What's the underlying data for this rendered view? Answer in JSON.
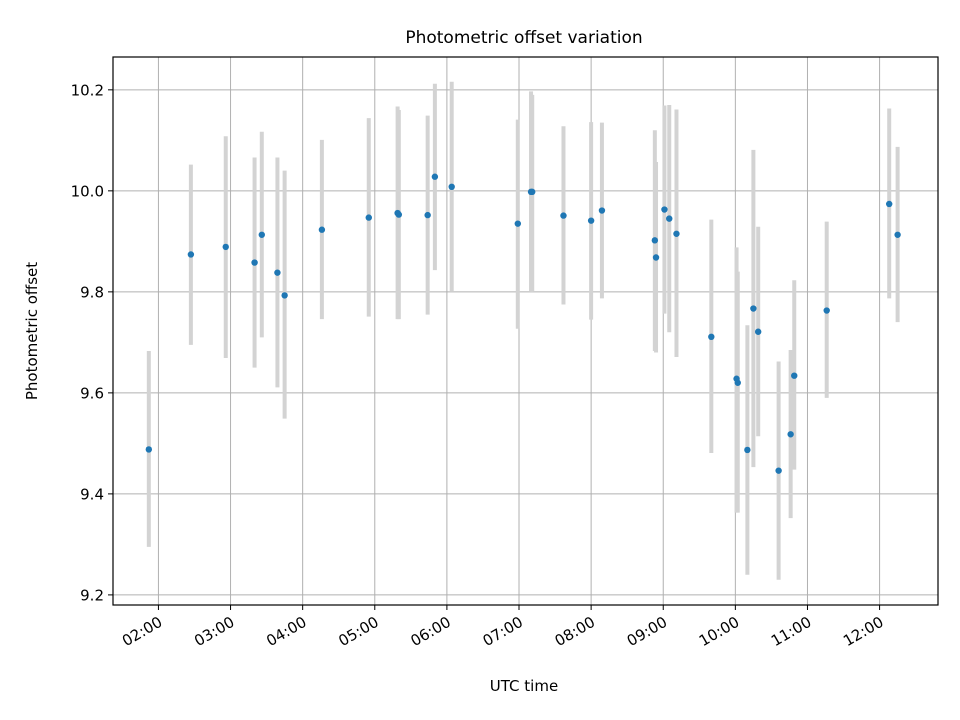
{
  "chart_data": {
    "type": "scatter",
    "title": "Photometric offset variation",
    "xlabel": "UTC time",
    "ylabel": "Photometric offset",
    "grid": true,
    "x_ticks": [
      "02:00",
      "03:00",
      "04:00",
      "05:00",
      "06:00",
      "07:00",
      "08:00",
      "09:00",
      "10:00",
      "11:00",
      "12:00"
    ],
    "x_tick_hours": [
      2,
      3,
      4,
      5,
      6,
      7,
      8,
      9,
      10,
      11,
      12
    ],
    "y_ticks": [
      "9.2",
      "9.4",
      "9.6",
      "9.8",
      "10.0",
      "10.2"
    ],
    "y_tick_values": [
      9.2,
      9.4,
      9.6,
      9.8,
      10.0,
      10.2
    ],
    "xlim_hours": [
      1.37,
      12.81
    ],
    "ylim": [
      9.18,
      10.265
    ],
    "point_color": "#1f77b4",
    "errorbar_color": "#d3d3d3",
    "points": [
      {
        "t": "01:52",
        "y": 9.488,
        "lo": 9.295,
        "hi": 9.683
      },
      {
        "t": "02:27",
        "y": 9.874,
        "lo": 9.695,
        "hi": 10.052
      },
      {
        "t": "02:56",
        "y": 9.889,
        "lo": 9.669,
        "hi": 10.108
      },
      {
        "t": "03:20",
        "y": 9.858,
        "lo": 9.65,
        "hi": 10.066
      },
      {
        "t": "03:26",
        "y": 9.913,
        "lo": 9.71,
        "hi": 10.117
      },
      {
        "t": "03:39",
        "y": 9.838,
        "lo": 9.611,
        "hi": 10.066
      },
      {
        "t": "03:45",
        "y": 9.793,
        "lo": 9.549,
        "hi": 10.04
      },
      {
        "t": "04:16",
        "y": 9.923,
        "lo": 9.746,
        "hi": 10.101
      },
      {
        "t": "04:55",
        "y": 9.947,
        "lo": 9.751,
        "hi": 10.144
      },
      {
        "t": "05:19",
        "y": 9.956,
        "lo": 9.746,
        "hi": 10.167
      },
      {
        "t": "05:20",
        "y": 9.953,
        "lo": 9.746,
        "hi": 10.16
      },
      {
        "t": "05:44",
        "y": 9.952,
        "lo": 9.755,
        "hi": 10.149
      },
      {
        "t": "05:50",
        "y": 10.028,
        "lo": 9.843,
        "hi": 10.212
      },
      {
        "t": "06:04",
        "y": 10.008,
        "lo": 9.8,
        "hi": 10.216
      },
      {
        "t": "06:59",
        "y": 9.935,
        "lo": 9.727,
        "hi": 10.141
      },
      {
        "t": "07:10",
        "y": 9.998,
        "lo": 9.8,
        "hi": 10.197
      },
      {
        "t": "07:11",
        "y": 9.998,
        "lo": 9.8,
        "hi": 10.19
      },
      {
        "t": "07:37",
        "y": 9.951,
        "lo": 9.775,
        "hi": 10.128
      },
      {
        "t": "08:00",
        "y": 9.941,
        "lo": 9.745,
        "hi": 10.136
      },
      {
        "t": "08:09",
        "y": 9.961,
        "lo": 9.787,
        "hi": 10.135
      },
      {
        "t": "08:53",
        "y": 9.902,
        "lo": 9.683,
        "hi": 10.12
      },
      {
        "t": "08:54",
        "y": 9.868,
        "lo": 9.68,
        "hi": 10.057
      },
      {
        "t": "09:01",
        "y": 9.963,
        "lo": 9.757,
        "hi": 10.169
      },
      {
        "t": "09:05",
        "y": 9.945,
        "lo": 9.72,
        "hi": 10.17
      },
      {
        "t": "09:11",
        "y": 9.915,
        "lo": 9.671,
        "hi": 10.161
      },
      {
        "t": "09:40",
        "y": 9.711,
        "lo": 9.481,
        "hi": 9.943
      },
      {
        "t": "10:01",
        "y": 9.628,
        "lo": 9.363,
        "hi": 9.888
      },
      {
        "t": "10:02",
        "y": 9.62,
        "lo": 9.363,
        "hi": 9.84
      },
      {
        "t": "10:10",
        "y": 9.487,
        "lo": 9.24,
        "hi": 9.734
      },
      {
        "t": "10:15",
        "y": 9.767,
        "lo": 9.453,
        "hi": 10.081
      },
      {
        "t": "10:19",
        "y": 9.721,
        "lo": 9.514,
        "hi": 9.929
      },
      {
        "t": "10:36",
        "y": 9.446,
        "lo": 9.23,
        "hi": 9.662
      },
      {
        "t": "10:46",
        "y": 9.518,
        "lo": 9.352,
        "hi": 9.685
      },
      {
        "t": "10:49",
        "y": 9.634,
        "lo": 9.448,
        "hi": 9.823
      },
      {
        "t": "11:16",
        "y": 9.763,
        "lo": 9.59,
        "hi": 9.939
      },
      {
        "t": "12:08",
        "y": 9.974,
        "lo": 9.787,
        "hi": 10.163
      },
      {
        "t": "12:15",
        "y": 9.913,
        "lo": 9.74,
        "hi": 10.087
      }
    ]
  }
}
